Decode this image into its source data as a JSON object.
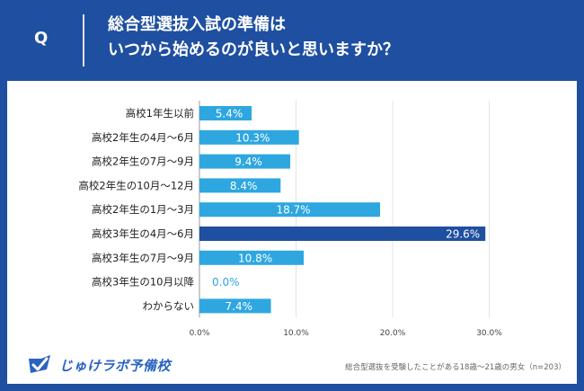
{
  "header": {
    "q_mark": "Q",
    "question_line1": "総合型選抜入試の準備は",
    "question_line2": "いつから始めるのが良いと思いますか？"
  },
  "footer": {
    "brand": "じゅけラボ予備校",
    "brand_icon": "check-logo-icon",
    "note": "総合型選抜を受験したことがある18歳～21歳の男女（n=203）"
  },
  "colors": {
    "background": "#1f4fa0",
    "bar": "#2ea7e0",
    "bar_highlight": "#1f4fa0",
    "zero_label": "#2ea7e0"
  },
  "chart_data": {
    "type": "bar",
    "orientation": "horizontal",
    "categories": [
      "高校1年生以前",
      "高校2年生の4月～6月",
      "高校2年生の7月～9月",
      "高校2年生の10月～12月",
      "高校2年生の1月～3月",
      "高校3年生の4月～6月",
      "高校3年生の7月～9月",
      "高校3年生の10月以降",
      "わからない"
    ],
    "values": [
      5.4,
      10.3,
      9.4,
      8.4,
      18.7,
      29.6,
      10.8,
      0.0,
      7.4
    ],
    "value_labels": [
      "5.4%",
      "10.3%",
      "9.4%",
      "8.4%",
      "18.7%",
      "29.6%",
      "10.8%",
      "0.0%",
      "7.4%"
    ],
    "highlight_index": 5,
    "xlim": [
      0,
      30
    ],
    "ticks": [
      0,
      10,
      20,
      30
    ],
    "tick_labels": [
      "0.0%",
      "10.0%",
      "20.0%",
      "30.0%"
    ],
    "grid": true,
    "legend": "none"
  }
}
